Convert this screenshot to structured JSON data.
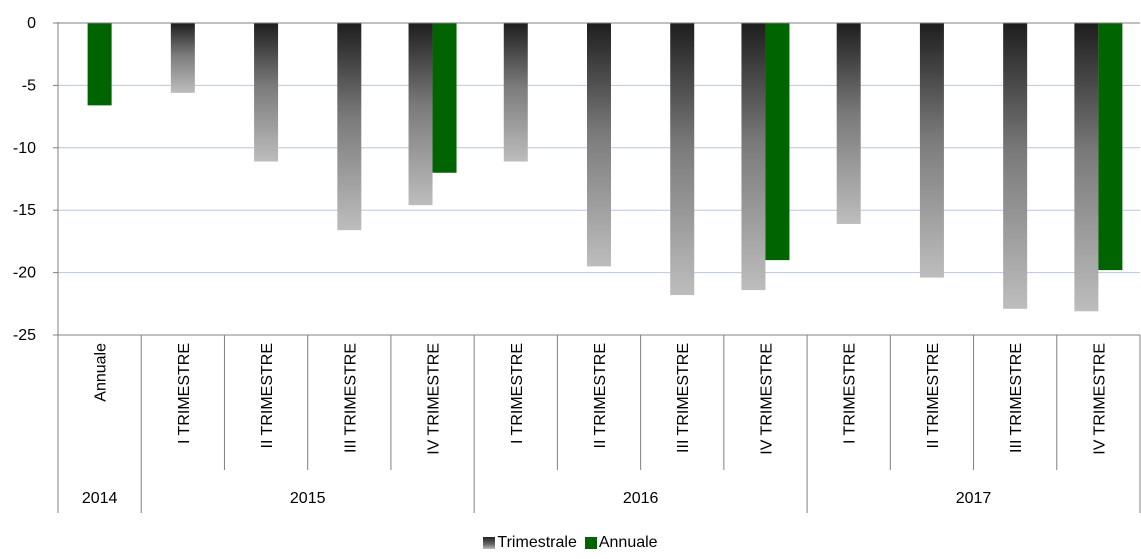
{
  "chart_data": {
    "type": "bar",
    "title": "",
    "xlabel": "",
    "ylabel": "",
    "ylim": [
      -25,
      0
    ],
    "yticks": [
      0,
      -5,
      -10,
      -15,
      -20,
      -25
    ],
    "grid": true,
    "legend_position": "bottom",
    "categories": [
      {
        "quarter": "Annuale",
        "year": "2014"
      },
      {
        "quarter": "I TRIMESTRE",
        "year": "2015"
      },
      {
        "quarter": "II TRIMESTRE",
        "year": "2015"
      },
      {
        "quarter": "III TRIMESTRE",
        "year": "2015"
      },
      {
        "quarter": "IV TRIMESTRE",
        "year": "2015"
      },
      {
        "quarter": "I TRIMESTRE",
        "year": "2016"
      },
      {
        "quarter": "II TRIMESTRE",
        "year": "2016"
      },
      {
        "quarter": "III TRIMESTRE",
        "year": "2016"
      },
      {
        "quarter": "IV TRIMESTRE",
        "year": "2016"
      },
      {
        "quarter": "I TRIMESTRE",
        "year": "2017"
      },
      {
        "quarter": "II TRIMESTRE",
        "year": "2017"
      },
      {
        "quarter": "III TRIMESTRE",
        "year": "2017"
      },
      {
        "quarter": "IV TRIMESTRE",
        "year": "2017"
      }
    ],
    "years": [
      "2014",
      "2015",
      "2016",
      "2017"
    ],
    "series": [
      {
        "name": "Trimestrale",
        "color": "#999999",
        "values": [
          null,
          -5.6,
          -11.1,
          -16.6,
          -14.6,
          -11.1,
          -19.5,
          -21.8,
          -21.4,
          -16.1,
          -20.4,
          -22.9,
          -23.1
        ]
      },
      {
        "name": "Annuale",
        "color": "#006400",
        "values": [
          -6.6,
          null,
          null,
          null,
          -12.0,
          null,
          null,
          null,
          -19.0,
          null,
          null,
          null,
          -19.8
        ]
      }
    ]
  }
}
